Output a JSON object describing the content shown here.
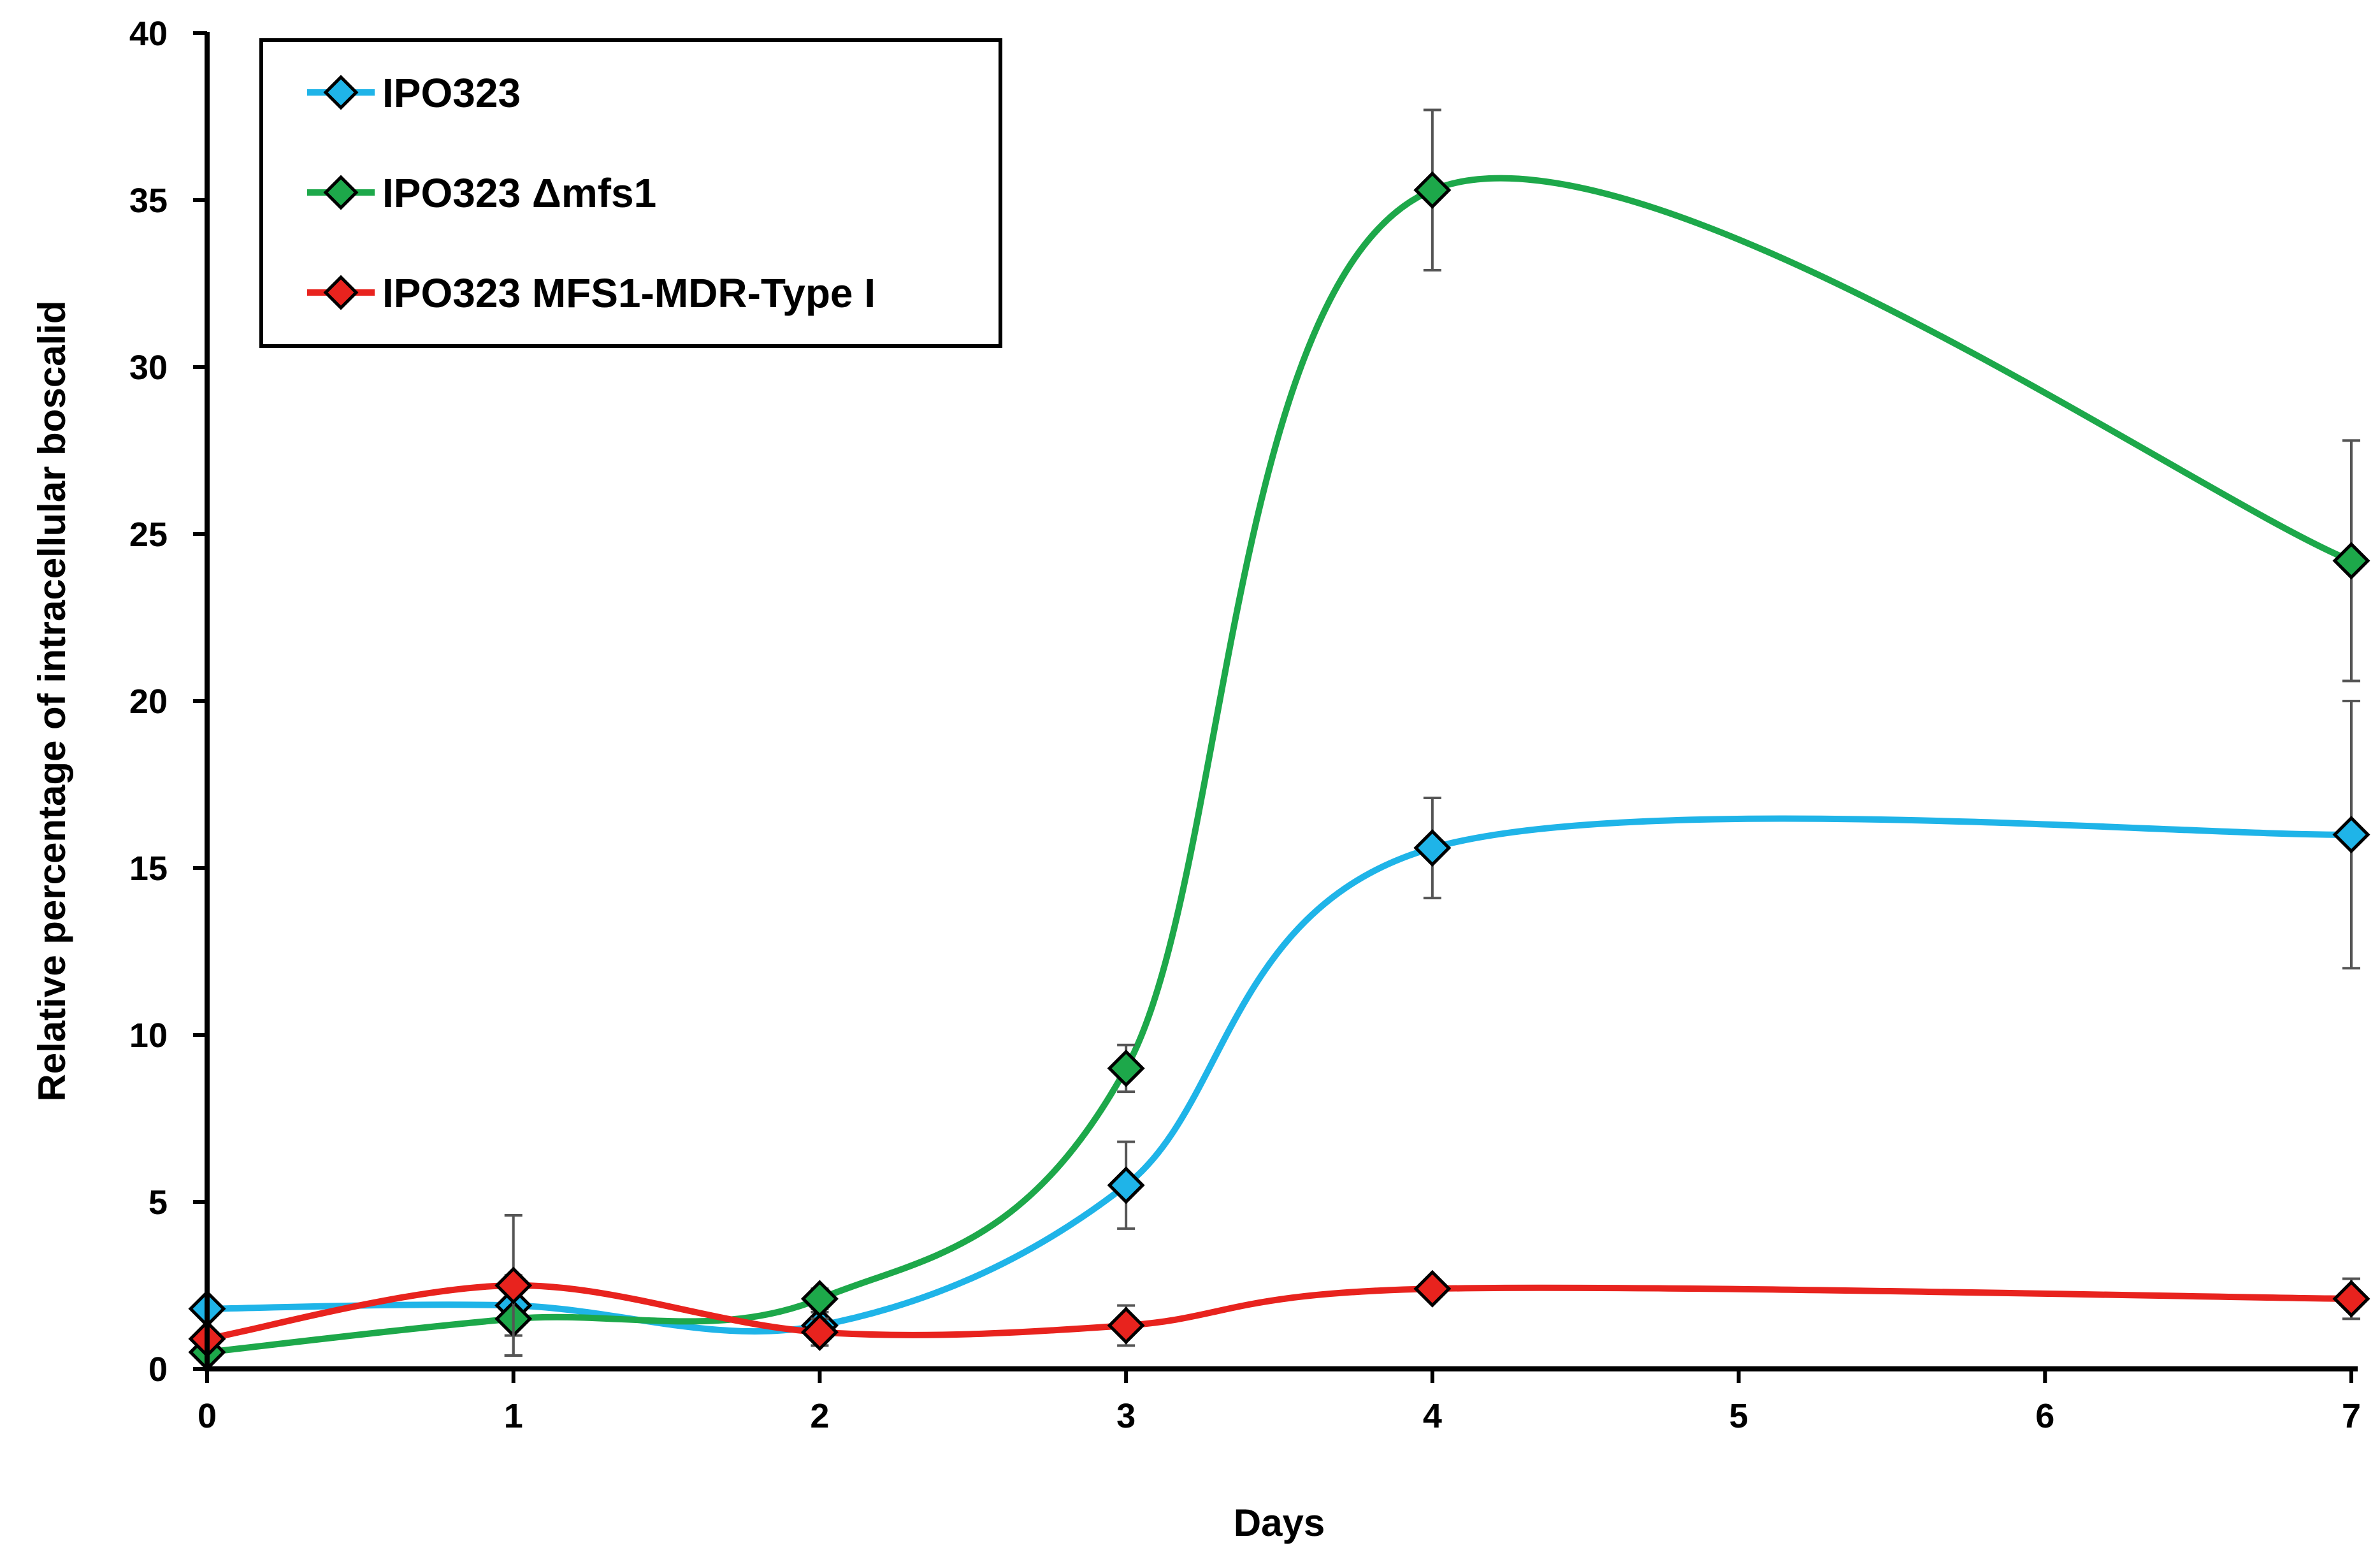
{
  "chart_data": {
    "type": "line",
    "title": "",
    "xlabel": "Days",
    "ylabel": "Relative percentage of intracellular boscalid",
    "xlim": [
      0,
      7
    ],
    "ylim": [
      0,
      40
    ],
    "x_ticks": [
      "0",
      "1",
      "2",
      "3",
      "4",
      "5",
      "6",
      "7"
    ],
    "y_ticks": [
      "0",
      "5",
      "10",
      "15",
      "20",
      "25",
      "30",
      "35",
      "40"
    ],
    "x": [
      0,
      1,
      2,
      3,
      4,
      7
    ],
    "grid": false,
    "legend_position": "top-left",
    "series": [
      {
        "name": "IPO323",
        "color": "#1FB4E8",
        "values": [
          1.8,
          1.9,
          1.3,
          5.5,
          15.6,
          16.0
        ],
        "errors": [
          0.0,
          0.9,
          0.4,
          1.3,
          1.5,
          4.0
        ]
      },
      {
        "name": "IPO323 Δmfs1",
        "color": "#1DA84A",
        "values": [
          0.5,
          1.5,
          2.1,
          9.0,
          35.3,
          24.2
        ],
        "errors": [
          0.0,
          1.1,
          0.3,
          0.7,
          2.4,
          3.6
        ]
      },
      {
        "name": "IPO323 MFS1-MDR-Type I",
        "color": "#E8231E",
        "values": [
          0.9,
          2.5,
          1.1,
          1.3,
          2.4,
          2.1
        ],
        "errors": [
          0.0,
          2.1,
          0.4,
          0.6,
          0.0,
          0.6
        ]
      }
    ]
  }
}
